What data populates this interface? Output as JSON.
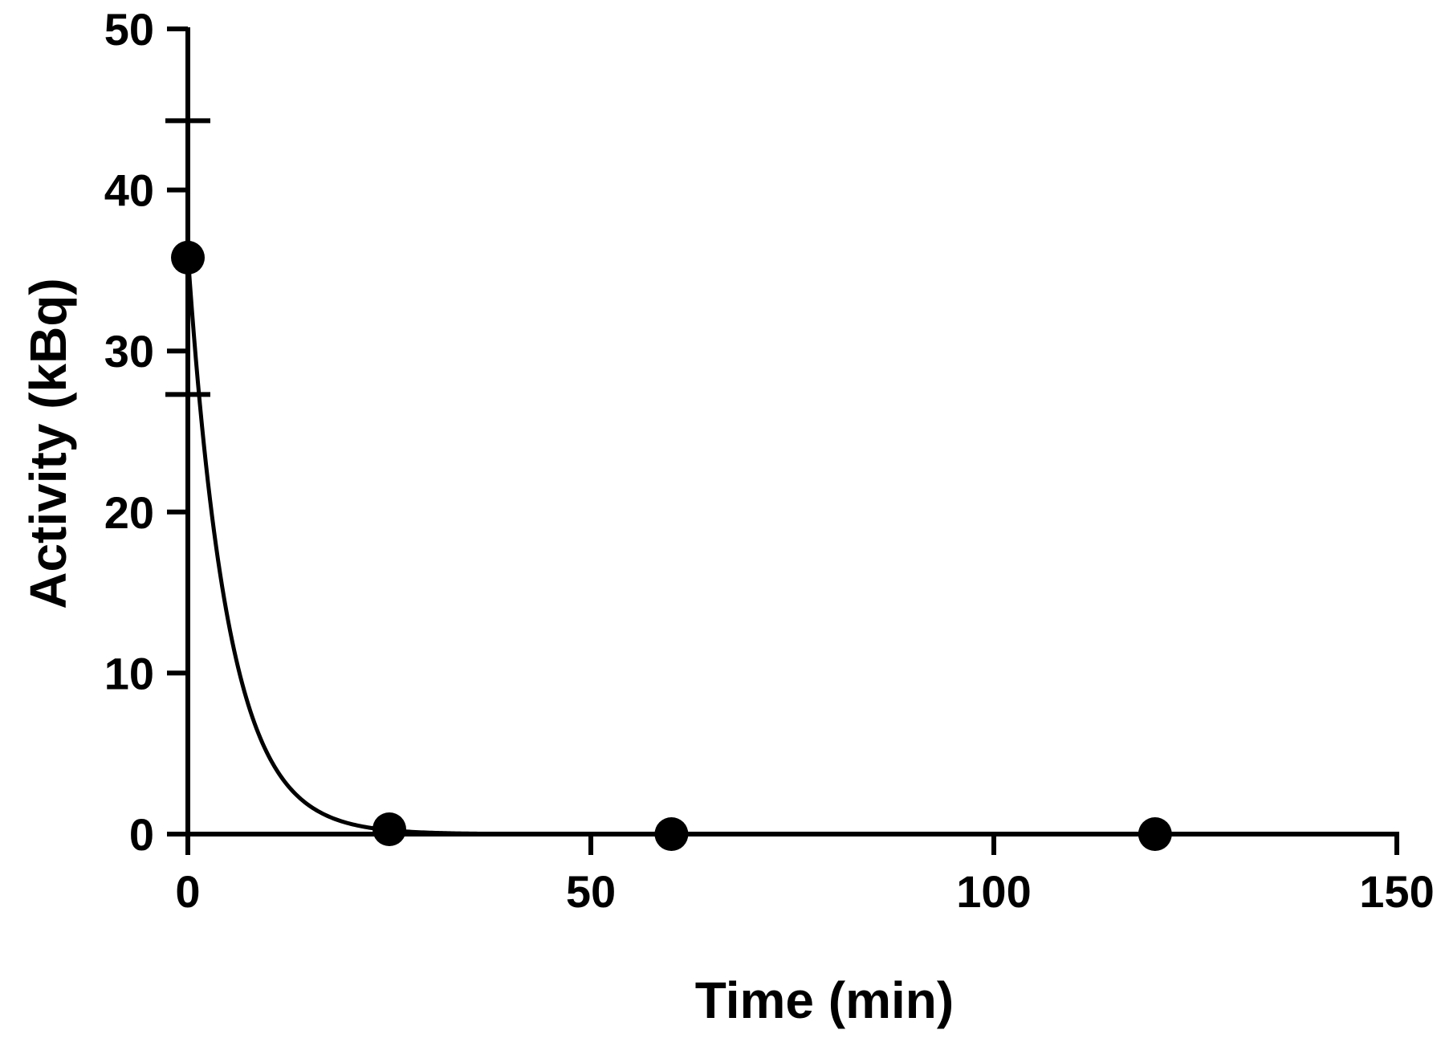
{
  "chart_data": {
    "type": "scatter",
    "title": "",
    "xlabel": "Time (min)",
    "ylabel": "Activity (kBq)",
    "xlim": [
      0,
      150
    ],
    "ylim": [
      0,
      50
    ],
    "xticks": [
      "0",
      "50",
      "100",
      "150"
    ],
    "yticks": [
      "0",
      "10",
      "20",
      "30",
      "40",
      "50"
    ],
    "grid": false,
    "legend": "none",
    "series": [
      {
        "x": [
          0,
          25,
          60,
          120
        ],
        "y": [
          35.8,
          0.3,
          0,
          0
        ],
        "error_y": [
          8.5,
          0,
          0,
          0
        ],
        "color": "#000000",
        "marker": "filled-circle"
      }
    ],
    "fit_curve": {
      "model": "exponential decay",
      "y0": 36,
      "k_per_min": 0.2,
      "color": "#000000"
    }
  }
}
